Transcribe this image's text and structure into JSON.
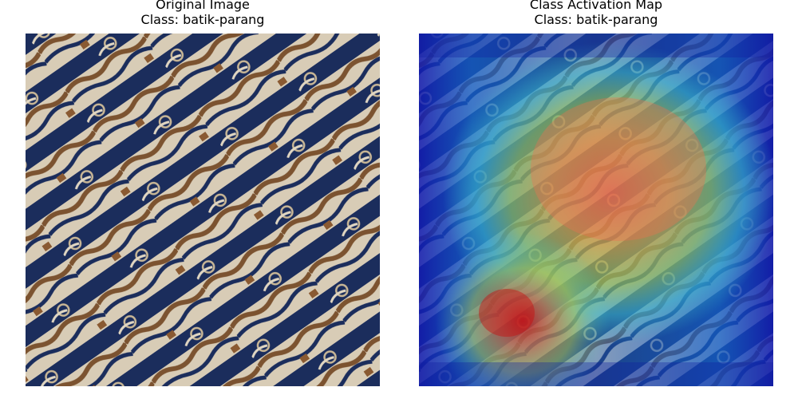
{
  "panels": [
    {
      "title": "Original Image",
      "class_line": "Class: batik-parang"
    },
    {
      "title": "Class Activation Map",
      "class_line": "Class: batik-parang"
    }
  ],
  "colors": {
    "fabric_navy": "#1a2c5a",
    "fabric_cream": "#d9cdb8",
    "fabric_brown": "#8a5a32",
    "heat_peak": "#e03020"
  }
}
